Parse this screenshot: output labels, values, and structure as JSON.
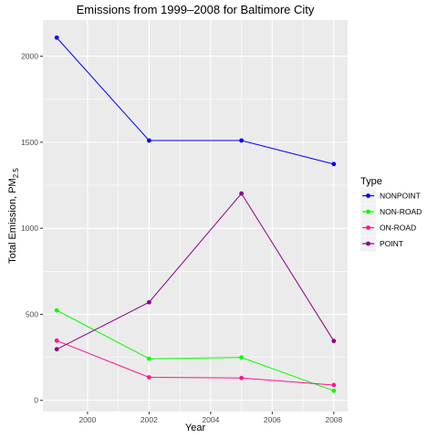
{
  "chart_data": {
    "type": "line",
    "title": "Emissions from 1999–2008 for Baltimore City",
    "xlabel": "Year",
    "ylabel_main": "Total Emission, PM",
    "ylabel_sub": "2.5",
    "x": [
      1999,
      2002,
      2005,
      2008
    ],
    "xlim": [
      1998.55,
      2008.45
    ],
    "ylim": [
      -65,
      2210
    ],
    "x_ticks": [
      2000,
      2002,
      2004,
      2006,
      2008
    ],
    "y_ticks": [
      0,
      500,
      1000,
      1500,
      2000
    ],
    "grid": true,
    "background": "#ebebeb",
    "legend_title": "Type",
    "legend_position": "right",
    "series": [
      {
        "name": "NONPOINT",
        "color": "#0000ff",
        "values": [
          2108,
          1510,
          1510,
          1373
        ]
      },
      {
        "name": "NON-ROAD",
        "color": "#00ff00",
        "values": [
          523,
          242,
          249,
          56
        ]
      },
      {
        "name": "ON-ROAD",
        "color": "#ff1493",
        "values": [
          347,
          134,
          130,
          89
        ]
      },
      {
        "name": "POINT",
        "color": "#8b008b",
        "values": [
          297,
          570,
          1202,
          345
        ]
      }
    ]
  }
}
